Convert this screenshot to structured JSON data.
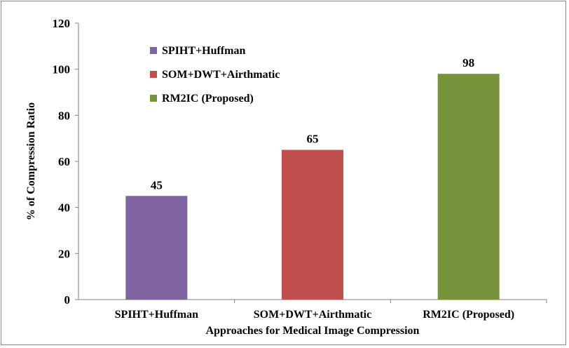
{
  "chart_data": {
    "type": "bar",
    "title": "",
    "xlabel": "Approaches for Medical Image Compression",
    "ylabel": "% of Compression Ratio",
    "ylim": [
      0,
      120
    ],
    "yticks": [
      0,
      20,
      40,
      60,
      80,
      100,
      120
    ],
    "categories": [
      "SPIHT+Huffman",
      "SOM+DWT+Airthmatic",
      "RM2IC (Proposed)"
    ],
    "values": [
      45,
      65,
      98
    ],
    "data_labels": [
      "45",
      "65",
      "98"
    ],
    "colors": [
      "#8064a2",
      "#c0504d",
      "#77933c"
    ],
    "legend": {
      "placement": "top-left",
      "entries": [
        "SPIHT+Huffman",
        "SOM+DWT+Airthmatic",
        "RM2IC (Proposed)"
      ]
    },
    "grid": false
  }
}
